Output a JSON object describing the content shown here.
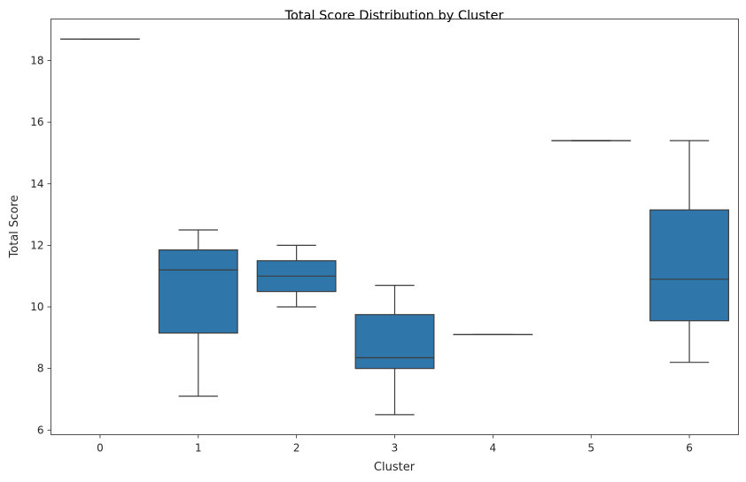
{
  "chart_data": {
    "type": "box",
    "title": "Total Score Distribution by Cluster",
    "xlabel": "Cluster",
    "ylabel": "Total Score",
    "ylim": [
      5.85,
      19.35
    ],
    "y_ticks": [
      6,
      8,
      10,
      12,
      14,
      16,
      18
    ],
    "grid": false,
    "legend": "none",
    "box_color": "#2f76ab",
    "line_color": "#3d3d3d",
    "boxes": [
      {
        "category": "0",
        "whisker_low": 18.7,
        "q1": 18.7,
        "median": 18.7,
        "q3": 18.7,
        "whisker_high": 18.7
      },
      {
        "category": "1",
        "whisker_low": 7.1,
        "q1": 9.15,
        "median": 11.2,
        "q3": 11.85,
        "whisker_high": 12.5
      },
      {
        "category": "2",
        "whisker_low": 10.0,
        "q1": 10.5,
        "median": 11.0,
        "q3": 11.5,
        "whisker_high": 12.0
      },
      {
        "category": "3",
        "whisker_low": 6.5,
        "q1": 8.0,
        "median": 8.35,
        "q3": 9.75,
        "whisker_high": 10.7
      },
      {
        "category": "4",
        "whisker_low": 9.1,
        "q1": 9.1,
        "median": 9.1,
        "q3": 9.1,
        "whisker_high": 9.1
      },
      {
        "category": "5",
        "whisker_low": 15.4,
        "q1": 15.4,
        "median": 15.4,
        "q3": 15.4,
        "whisker_high": 15.4
      },
      {
        "category": "6",
        "whisker_low": 8.2,
        "q1": 9.55,
        "median": 10.9,
        "q3": 13.15,
        "whisker_high": 15.4
      }
    ]
  }
}
